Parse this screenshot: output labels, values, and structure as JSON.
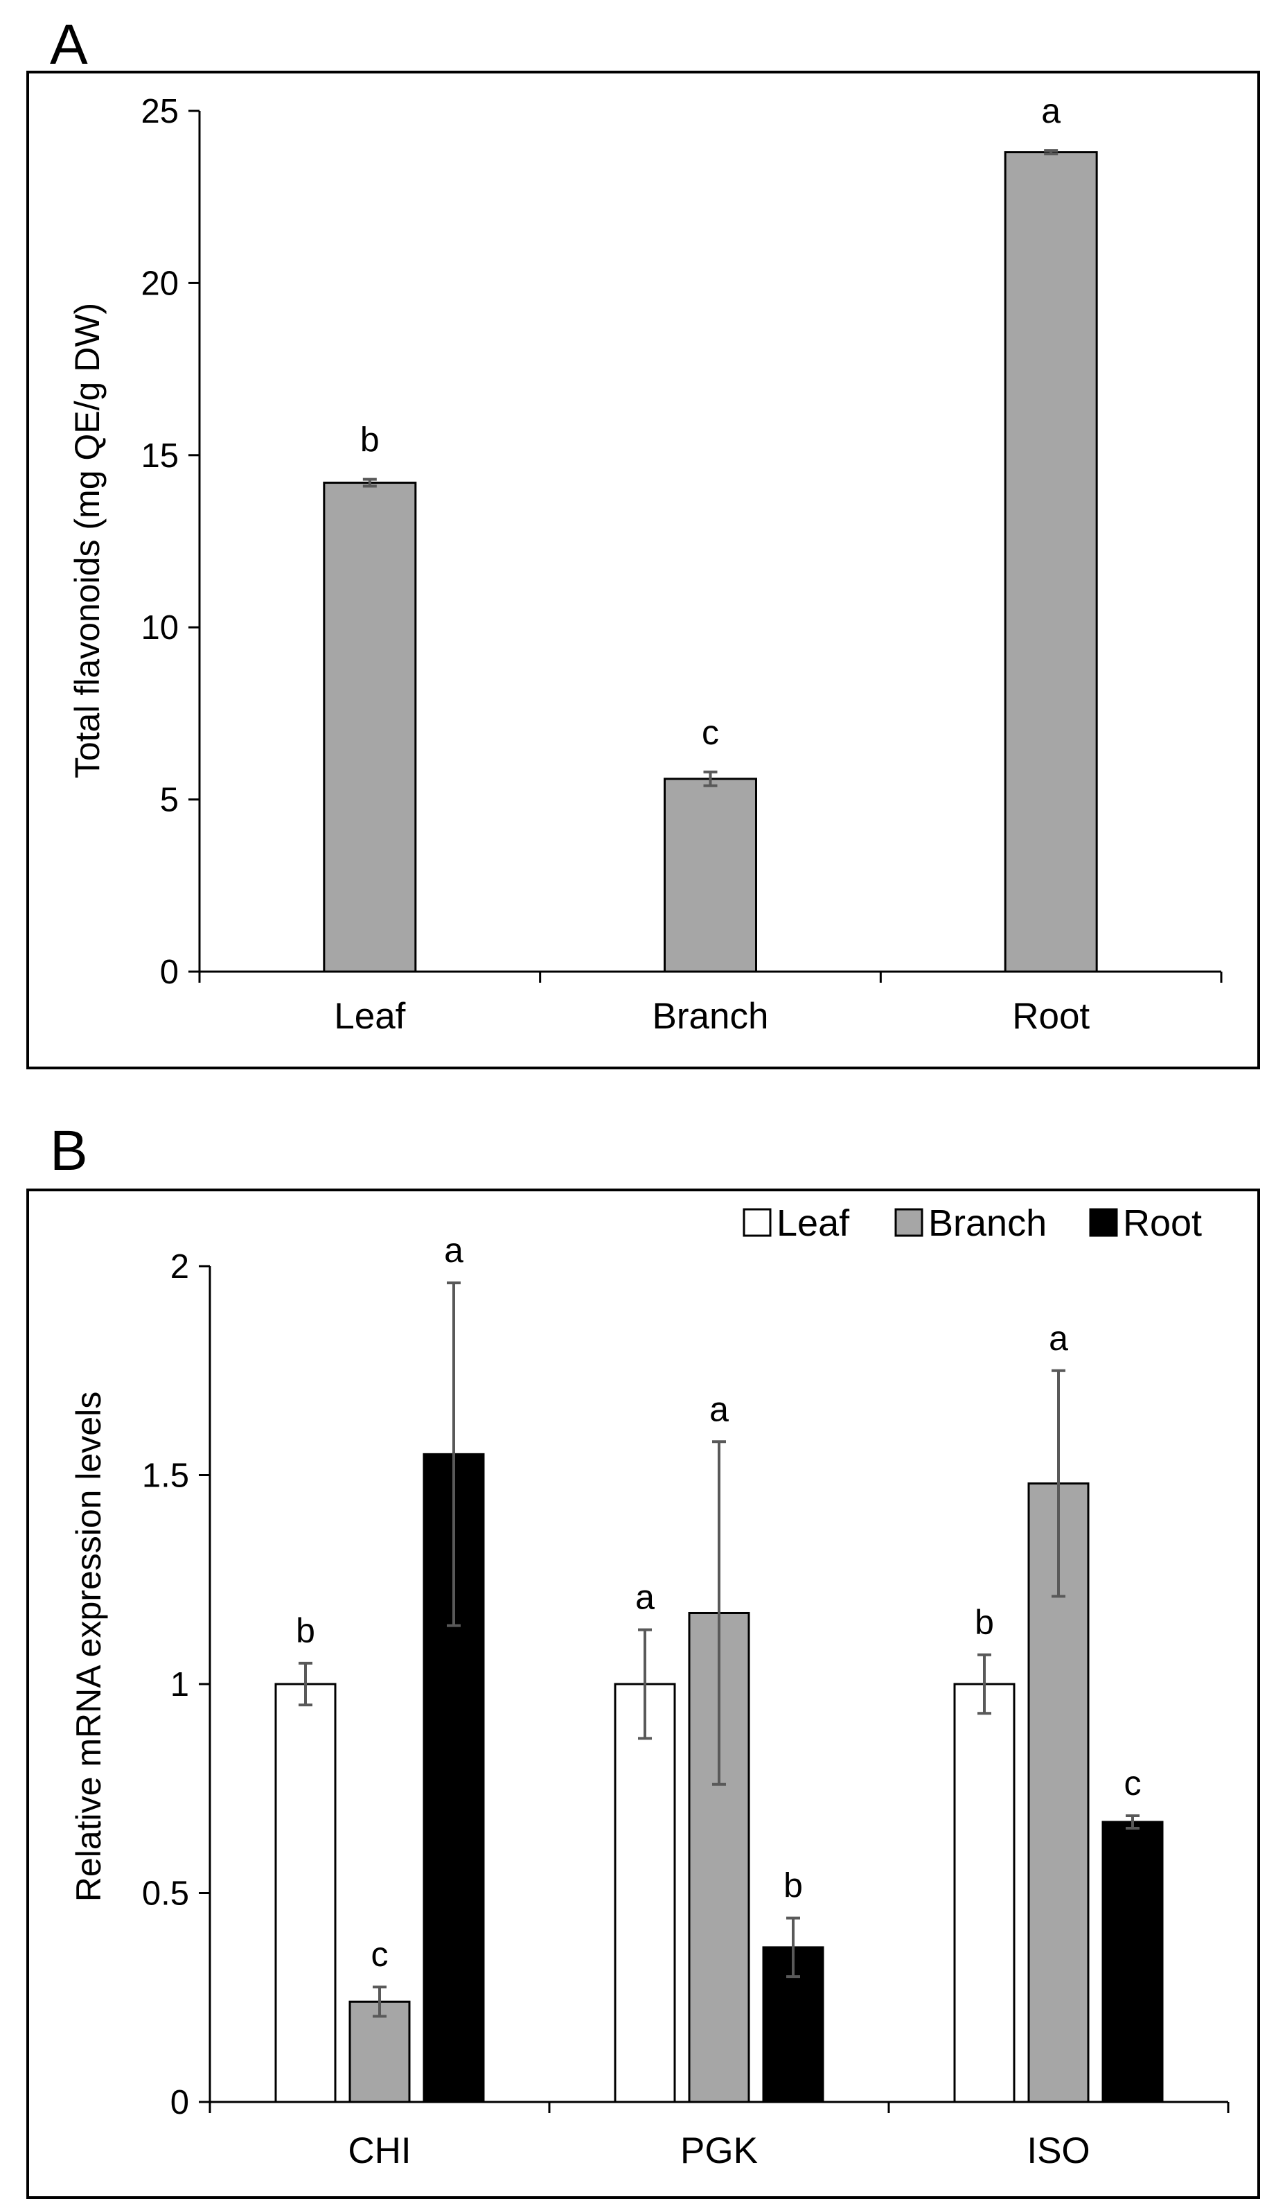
{
  "colors": {
    "leaf": "#ffffff",
    "branch": "#a6a6a6",
    "root": "#000000",
    "axis": "#000000",
    "error": "#595959"
  },
  "chart_data": [
    {
      "panel": "A",
      "type": "bar",
      "categories": [
        "Leaf",
        "Branch",
        "Root"
      ],
      "values": [
        14.2,
        5.6,
        23.8
      ],
      "errors": [
        0.1,
        0.2,
        0.05
      ],
      "significance": [
        "b",
        "c",
        "a"
      ],
      "ylabel": "Total flavonoids (mg QE/g DW)",
      "ylim": [
        0,
        25
      ],
      "yticks": [
        "0",
        "5",
        "10",
        "15",
        "20",
        "25"
      ],
      "grid": false
    },
    {
      "panel": "B",
      "type": "bar",
      "categories": [
        "CHI",
        "PGK",
        "ISO"
      ],
      "series": [
        {
          "name": "Leaf",
          "values": [
            1.0,
            1.0,
            1.0
          ],
          "errors": [
            0.05,
            0.13,
            0.07
          ],
          "significance": [
            "b",
            "a",
            "b"
          ]
        },
        {
          "name": "Branch",
          "values": [
            0.24,
            1.17,
            1.48
          ],
          "errors": [
            0.035,
            0.41,
            0.27
          ],
          "significance": [
            "c",
            "a",
            "a"
          ]
        },
        {
          "name": "Root",
          "values": [
            1.55,
            0.37,
            0.67
          ],
          "errors": [
            0.41,
            0.07,
            0.015
          ],
          "significance": [
            "a",
            "b",
            "c"
          ]
        }
      ],
      "ylabel": "Relative mRNA expression levels",
      "ylim": [
        0,
        2
      ],
      "yticks": [
        "0",
        "0.5",
        "1",
        "1.5",
        "2"
      ],
      "legend_position": "top-right",
      "grid": false
    }
  ]
}
